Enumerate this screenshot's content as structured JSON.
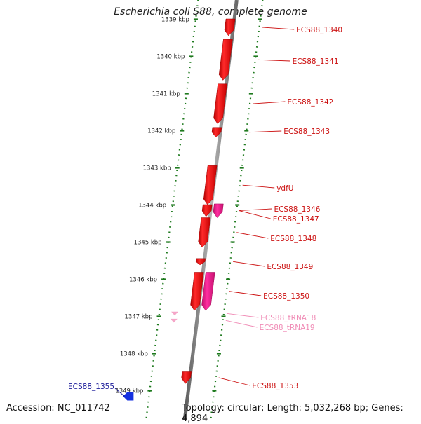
{
  "title": "Escherichia coli S88, complete genome",
  "footer": {
    "accession": "Accession: NC_011742",
    "summary": "Topology: circular; Length: 5,032,268 bp; Genes: 4,894"
  },
  "colors": {
    "backbone": "#8c8c8c",
    "ruler_ticks": "#1e7a1e",
    "cds": "#ee1111",
    "cds_alt": "#f0188a",
    "trna": "#f5a6c8",
    "minus_strand_gene": "#1530e0",
    "gene_label": "#cc1111",
    "trna_label": "#f08cb6",
    "blue_label": "#1a1a99"
  },
  "ruler": {
    "unit": "kbp",
    "ticks": [
      {
        "kbp": 1339,
        "label": "1339 kbp"
      },
      {
        "kbp": 1340,
        "label": "1340 kbp"
      },
      {
        "kbp": 1341,
        "label": "1341 kbp"
      },
      {
        "kbp": 1342,
        "label": "1342 kbp"
      },
      {
        "kbp": 1343,
        "label": "1343 kbp"
      },
      {
        "kbp": 1344,
        "label": "1344 kbp"
      },
      {
        "kbp": 1345,
        "label": "1345 kbp"
      },
      {
        "kbp": 1346,
        "label": "1346 kbp"
      },
      {
        "kbp": 1347,
        "label": "1347 kbp"
      },
      {
        "kbp": 1348,
        "label": "1348 kbp"
      },
      {
        "kbp": 1349,
        "label": "1349 kbp"
      }
    ]
  },
  "features": [
    {
      "label": "ECS88_1340",
      "type": "cds",
      "start_kbp": 1339.0,
      "end_kbp": 1339.45,
      "track": 0
    },
    {
      "label": "ECS88_1341",
      "type": "cds",
      "start_kbp": 1339.55,
      "end_kbp": 1340.65,
      "track": 0
    },
    {
      "label": "ECS88_1342",
      "type": "cds",
      "start_kbp": 1340.75,
      "end_kbp": 1341.82,
      "track": 0
    },
    {
      "label": "ECS88_1343",
      "type": "cds",
      "start_kbp": 1341.92,
      "end_kbp": 1342.18,
      "track": 0
    },
    {
      "label": "ydfU",
      "type": "cds",
      "start_kbp": 1342.95,
      "end_kbp": 1344.0,
      "track": 0
    },
    {
      "label": "ECS88_1346",
      "type": "cds",
      "start_kbp": 1344.0,
      "end_kbp": 1344.32,
      "track": 0
    },
    {
      "label": "ECS88_1347",
      "type": "cds_alt",
      "start_kbp": 1343.98,
      "end_kbp": 1344.35,
      "track": 1
    },
    {
      "label": "ECS88_1348",
      "type": "cds",
      "start_kbp": 1344.35,
      "end_kbp": 1345.15,
      "track": 0
    },
    {
      "label": "ECS88_1349",
      "type": "cds",
      "start_kbp": 1345.45,
      "end_kbp": 1345.62,
      "track": 0
    },
    {
      "label": "ECS88_1350",
      "type": "cds",
      "start_kbp": 1345.82,
      "end_kbp": 1346.85,
      "track": 0
    },
    {
      "label": "",
      "type": "cds_alt",
      "start_kbp": 1345.82,
      "end_kbp": 1346.85,
      "track": 1
    },
    {
      "label": "ECS88_tRNA18",
      "type": "trna",
      "start_kbp": 1346.88,
      "end_kbp": 1346.98,
      "track": 0
    },
    {
      "label": "ECS88_tRNA19",
      "type": "trna",
      "start_kbp": 1347.08,
      "end_kbp": 1347.16,
      "track": 0
    },
    {
      "label": "ECS88_1353",
      "type": "cds",
      "start_kbp": 1348.5,
      "end_kbp": 1348.82,
      "track": 0
    },
    {
      "label": "ECS88_1355",
      "type": "minus",
      "start_kbp": 1349.02,
      "end_kbp": 1349.3,
      "track": 0
    }
  ]
}
